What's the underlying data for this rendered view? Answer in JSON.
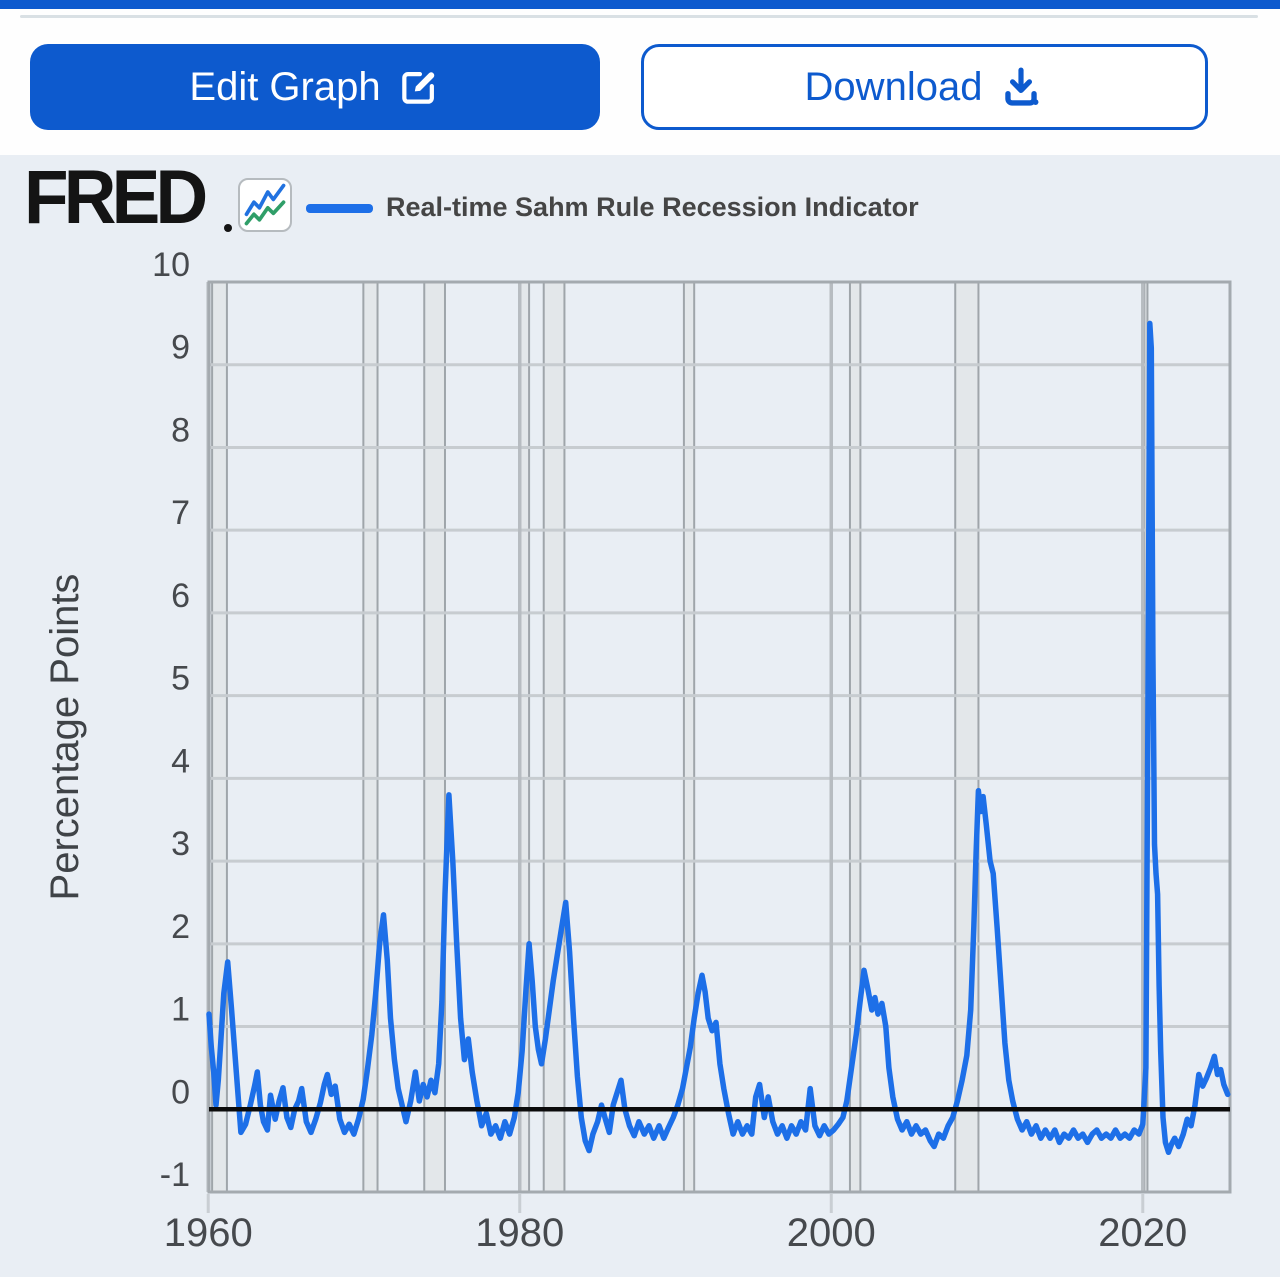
{
  "top_bar": {
    "color": "#0d5ace"
  },
  "toolbar": {
    "edit_label": "Edit Graph",
    "download_label": "Download",
    "edit_icon": "edit-pencil-square-icon",
    "download_icon": "download-tray-icon"
  },
  "header": {
    "logo_text": "FRED",
    "registered_mark": "®",
    "logo_chart_icon": "fred-zigzag-chart-icon",
    "legend_label": "Real-time Sahm Rule Recession Indicator"
  },
  "colors": {
    "accent": "#0d5ace",
    "panel_background": "#e9eef4",
    "series_blue": "#1d6fe8",
    "logo_icon_green": "#2f9e68",
    "zero_line": "#0b0b0b"
  },
  "chart_data": {
    "type": "line",
    "title": "Real-time Sahm Rule Recession Indicator",
    "xlabel": "",
    "ylabel": "Percentage Points",
    "xlim": [
      1960.05,
      2025.6
    ],
    "ylim": [
      -1,
      10
    ],
    "x_ticks": [
      1960,
      1980,
      2000,
      2020
    ],
    "y_ticks": [
      -1,
      0,
      1,
      2,
      3,
      4,
      5,
      6,
      7,
      8,
      9,
      10
    ],
    "grid": true,
    "legend_position": "top",
    "line_color": "#1d6fe8",
    "grid_color": "#c7ccd0",
    "decade_grid_color": "#b7bcc1",
    "border_color": "#a4aaaf",
    "band_fill": "#e3e7ea",
    "band_edge": "#9fa5aa",
    "tick_text_color": "#46494d",
    "zero_line_color": "#0b0b0b",
    "recession_bands": [
      [
        1960.25,
        1961.2
      ],
      [
        1969.96,
        1970.87
      ],
      [
        1973.87,
        1975.2
      ],
      [
        1980.0,
        1980.6
      ],
      [
        1981.54,
        1982.87
      ],
      [
        1990.54,
        1991.2
      ],
      [
        2001.2,
        2001.87
      ],
      [
        2007.96,
        2009.45
      ],
      [
        2020.1,
        2020.3
      ]
    ],
    "series": [
      {
        "name": "Real-time Sahm Rule Recession Indicator",
        "points": [
          [
            1960.05,
            1.15
          ],
          [
            1960.2,
            0.75
          ],
          [
            1960.35,
            0.45
          ],
          [
            1960.5,
            0.05
          ],
          [
            1960.65,
            0.35
          ],
          [
            1960.8,
            0.8
          ],
          [
            1961.0,
            1.4
          ],
          [
            1961.25,
            1.78
          ],
          [
            1961.5,
            1.2
          ],
          [
            1961.8,
            0.45
          ],
          [
            1962.1,
            -0.28
          ],
          [
            1962.4,
            -0.18
          ],
          [
            1962.7,
            0.05
          ],
          [
            1963.0,
            0.3
          ],
          [
            1963.15,
            0.45
          ],
          [
            1963.35,
            0.05
          ],
          [
            1963.55,
            -0.15
          ],
          [
            1963.8,
            -0.25
          ],
          [
            1964.0,
            0.17
          ],
          [
            1964.3,
            -0.12
          ],
          [
            1964.55,
            0.1
          ],
          [
            1964.8,
            0.26
          ],
          [
            1965.05,
            -0.1
          ],
          [
            1965.3,
            -0.22
          ],
          [
            1965.55,
            0.0
          ],
          [
            1965.8,
            0.1
          ],
          [
            1966.0,
            0.25
          ],
          [
            1966.3,
            -0.15
          ],
          [
            1966.6,
            -0.28
          ],
          [
            1966.9,
            -0.12
          ],
          [
            1967.2,
            0.08
          ],
          [
            1967.45,
            0.3
          ],
          [
            1967.65,
            0.42
          ],
          [
            1967.9,
            0.18
          ],
          [
            1968.15,
            0.28
          ],
          [
            1968.45,
            -0.12
          ],
          [
            1968.75,
            -0.28
          ],
          [
            1969.05,
            -0.18
          ],
          [
            1969.35,
            -0.3
          ],
          [
            1969.65,
            -0.12
          ],
          [
            1969.95,
            0.12
          ],
          [
            1970.2,
            0.45
          ],
          [
            1970.5,
            0.9
          ],
          [
            1970.75,
            1.4
          ],
          [
            1971.0,
            2.0
          ],
          [
            1971.25,
            2.35
          ],
          [
            1971.5,
            1.8
          ],
          [
            1971.7,
            1.1
          ],
          [
            1971.95,
            0.6
          ],
          [
            1972.2,
            0.25
          ],
          [
            1972.45,
            0.05
          ],
          [
            1972.7,
            -0.15
          ],
          [
            1973.0,
            0.1
          ],
          [
            1973.3,
            0.45
          ],
          [
            1973.55,
            0.1
          ],
          [
            1973.8,
            0.3
          ],
          [
            1974.05,
            0.15
          ],
          [
            1974.3,
            0.35
          ],
          [
            1974.55,
            0.2
          ],
          [
            1974.8,
            0.55
          ],
          [
            1975.0,
            1.3
          ],
          [
            1975.2,
            2.6
          ],
          [
            1975.45,
            3.8
          ],
          [
            1975.7,
            3.0
          ],
          [
            1975.95,
            2.0
          ],
          [
            1976.2,
            1.1
          ],
          [
            1976.45,
            0.6
          ],
          [
            1976.7,
            0.85
          ],
          [
            1976.95,
            0.45
          ],
          [
            1977.25,
            0.1
          ],
          [
            1977.55,
            -0.2
          ],
          [
            1977.85,
            -0.05
          ],
          [
            1978.15,
            -0.3
          ],
          [
            1978.45,
            -0.2
          ],
          [
            1978.75,
            -0.35
          ],
          [
            1979.05,
            -0.15
          ],
          [
            1979.35,
            -0.3
          ],
          [
            1979.65,
            -0.1
          ],
          [
            1979.9,
            0.2
          ],
          [
            1980.15,
            0.7
          ],
          [
            1980.4,
            1.45
          ],
          [
            1980.6,
            2.0
          ],
          [
            1980.8,
            1.55
          ],
          [
            1981.0,
            1.0
          ],
          [
            1981.2,
            0.72
          ],
          [
            1981.4,
            0.55
          ],
          [
            1981.65,
            0.85
          ],
          [
            1981.9,
            1.2
          ],
          [
            1982.15,
            1.55
          ],
          [
            1982.4,
            1.85
          ],
          [
            1982.65,
            2.15
          ],
          [
            1982.95,
            2.5
          ],
          [
            1983.2,
            1.9
          ],
          [
            1983.45,
            1.1
          ],
          [
            1983.7,
            0.4
          ],
          [
            1983.95,
            -0.1
          ],
          [
            1984.2,
            -0.38
          ],
          [
            1984.45,
            -0.5
          ],
          [
            1984.7,
            -0.3
          ],
          [
            1985.0,
            -0.15
          ],
          [
            1985.25,
            0.05
          ],
          [
            1985.5,
            -0.12
          ],
          [
            1985.75,
            -0.28
          ],
          [
            1986.0,
            0.05
          ],
          [
            1986.25,
            0.2
          ],
          [
            1986.5,
            0.35
          ],
          [
            1986.75,
            0.0
          ],
          [
            1987.05,
            -0.2
          ],
          [
            1987.35,
            -0.32
          ],
          [
            1987.65,
            -0.15
          ],
          [
            1988.0,
            -0.3
          ],
          [
            1988.3,
            -0.2
          ],
          [
            1988.6,
            -0.35
          ],
          [
            1988.95,
            -0.2
          ],
          [
            1989.25,
            -0.35
          ],
          [
            1989.55,
            -0.22
          ],
          [
            1989.85,
            -0.1
          ],
          [
            1990.15,
            0.05
          ],
          [
            1990.45,
            0.25
          ],
          [
            1990.7,
            0.5
          ],
          [
            1990.95,
            0.75
          ],
          [
            1991.2,
            1.1
          ],
          [
            1991.45,
            1.4
          ],
          [
            1991.7,
            1.62
          ],
          [
            1991.9,
            1.42
          ],
          [
            1992.1,
            1.1
          ],
          [
            1992.35,
            0.95
          ],
          [
            1992.6,
            1.05
          ],
          [
            1992.85,
            0.55
          ],
          [
            1993.1,
            0.25
          ],
          [
            1993.4,
            -0.05
          ],
          [
            1993.7,
            -0.3
          ],
          [
            1994.0,
            -0.15
          ],
          [
            1994.3,
            -0.3
          ],
          [
            1994.6,
            -0.2
          ],
          [
            1994.9,
            -0.3
          ],
          [
            1995.15,
            0.15
          ],
          [
            1995.4,
            0.3
          ],
          [
            1995.7,
            -0.1
          ],
          [
            1995.95,
            0.15
          ],
          [
            1996.25,
            -0.15
          ],
          [
            1996.55,
            -0.3
          ],
          [
            1996.85,
            -0.2
          ],
          [
            1997.15,
            -0.35
          ],
          [
            1997.45,
            -0.2
          ],
          [
            1997.75,
            -0.3
          ],
          [
            1998.05,
            -0.15
          ],
          [
            1998.35,
            -0.25
          ],
          [
            1998.65,
            0.25
          ],
          [
            1998.95,
            -0.2
          ],
          [
            1999.25,
            -0.32
          ],
          [
            1999.55,
            -0.2
          ],
          [
            1999.85,
            -0.3
          ],
          [
            2000.15,
            -0.25
          ],
          [
            2000.45,
            -0.18
          ],
          [
            2000.75,
            -0.1
          ],
          [
            2001.0,
            0.1
          ],
          [
            2001.3,
            0.5
          ],
          [
            2001.6,
            0.9
          ],
          [
            2001.85,
            1.3
          ],
          [
            2002.1,
            1.68
          ],
          [
            2002.35,
            1.45
          ],
          [
            2002.6,
            1.2
          ],
          [
            2002.8,
            1.35
          ],
          [
            2003.0,
            1.15
          ],
          [
            2003.25,
            1.28
          ],
          [
            2003.5,
            1.0
          ],
          [
            2003.7,
            0.5
          ],
          [
            2003.95,
            0.15
          ],
          [
            2004.25,
            -0.12
          ],
          [
            2004.55,
            -0.25
          ],
          [
            2004.85,
            -0.15
          ],
          [
            2005.15,
            -0.3
          ],
          [
            2005.45,
            -0.2
          ],
          [
            2005.75,
            -0.3
          ],
          [
            2006.05,
            -0.25
          ],
          [
            2006.35,
            -0.38
          ],
          [
            2006.6,
            -0.45
          ],
          [
            2006.9,
            -0.3
          ],
          [
            2007.2,
            -0.35
          ],
          [
            2007.5,
            -0.2
          ],
          [
            2007.8,
            -0.1
          ],
          [
            2008.1,
            0.1
          ],
          [
            2008.4,
            0.35
          ],
          [
            2008.7,
            0.65
          ],
          [
            2008.95,
            1.2
          ],
          [
            2009.15,
            2.2
          ],
          [
            2009.3,
            3.1
          ],
          [
            2009.45,
            3.85
          ],
          [
            2009.6,
            3.6
          ],
          [
            2009.75,
            3.78
          ],
          [
            2009.95,
            3.45
          ],
          [
            2010.2,
            3.0
          ],
          [
            2010.4,
            2.85
          ],
          [
            2010.65,
            2.2
          ],
          [
            2010.9,
            1.5
          ],
          [
            2011.15,
            0.8
          ],
          [
            2011.4,
            0.35
          ],
          [
            2011.65,
            0.1
          ],
          [
            2011.95,
            -0.12
          ],
          [
            2012.25,
            -0.25
          ],
          [
            2012.55,
            -0.15
          ],
          [
            2012.85,
            -0.3
          ],
          [
            2013.15,
            -0.2
          ],
          [
            2013.45,
            -0.35
          ],
          [
            2013.75,
            -0.25
          ],
          [
            2014.05,
            -0.35
          ],
          [
            2014.35,
            -0.25
          ],
          [
            2014.65,
            -0.4
          ],
          [
            2014.95,
            -0.3
          ],
          [
            2015.25,
            -0.35
          ],
          [
            2015.55,
            -0.25
          ],
          [
            2015.85,
            -0.35
          ],
          [
            2016.15,
            -0.3
          ],
          [
            2016.45,
            -0.4
          ],
          [
            2016.75,
            -0.3
          ],
          [
            2017.05,
            -0.25
          ],
          [
            2017.35,
            -0.35
          ],
          [
            2017.65,
            -0.3
          ],
          [
            2017.95,
            -0.35
          ],
          [
            2018.25,
            -0.25
          ],
          [
            2018.55,
            -0.35
          ],
          [
            2018.85,
            -0.3
          ],
          [
            2019.15,
            -0.35
          ],
          [
            2019.45,
            -0.25
          ],
          [
            2019.75,
            -0.3
          ],
          [
            2020.0,
            -0.18
          ],
          [
            2020.2,
            0.5
          ],
          [
            2020.32,
            4.5
          ],
          [
            2020.45,
            9.5
          ],
          [
            2020.55,
            9.2
          ],
          [
            2020.65,
            5.5
          ],
          [
            2020.75,
            3.2
          ],
          [
            2020.85,
            2.85
          ],
          [
            2020.95,
            2.6
          ],
          [
            2021.05,
            1.5
          ],
          [
            2021.15,
            0.7
          ],
          [
            2021.3,
            -0.1
          ],
          [
            2021.45,
            -0.4
          ],
          [
            2021.65,
            -0.52
          ],
          [
            2021.85,
            -0.42
          ],
          [
            2022.05,
            -0.35
          ],
          [
            2022.3,
            -0.45
          ],
          [
            2022.6,
            -0.3
          ],
          [
            2022.85,
            -0.12
          ],
          [
            2023.1,
            -0.2
          ],
          [
            2023.35,
            0.05
          ],
          [
            2023.6,
            0.42
          ],
          [
            2023.85,
            0.28
          ],
          [
            2024.1,
            0.38
          ],
          [
            2024.35,
            0.5
          ],
          [
            2024.6,
            0.64
          ],
          [
            2024.8,
            0.42
          ],
          [
            2025.0,
            0.48
          ],
          [
            2025.2,
            0.3
          ],
          [
            2025.45,
            0.18
          ]
        ]
      }
    ]
  }
}
